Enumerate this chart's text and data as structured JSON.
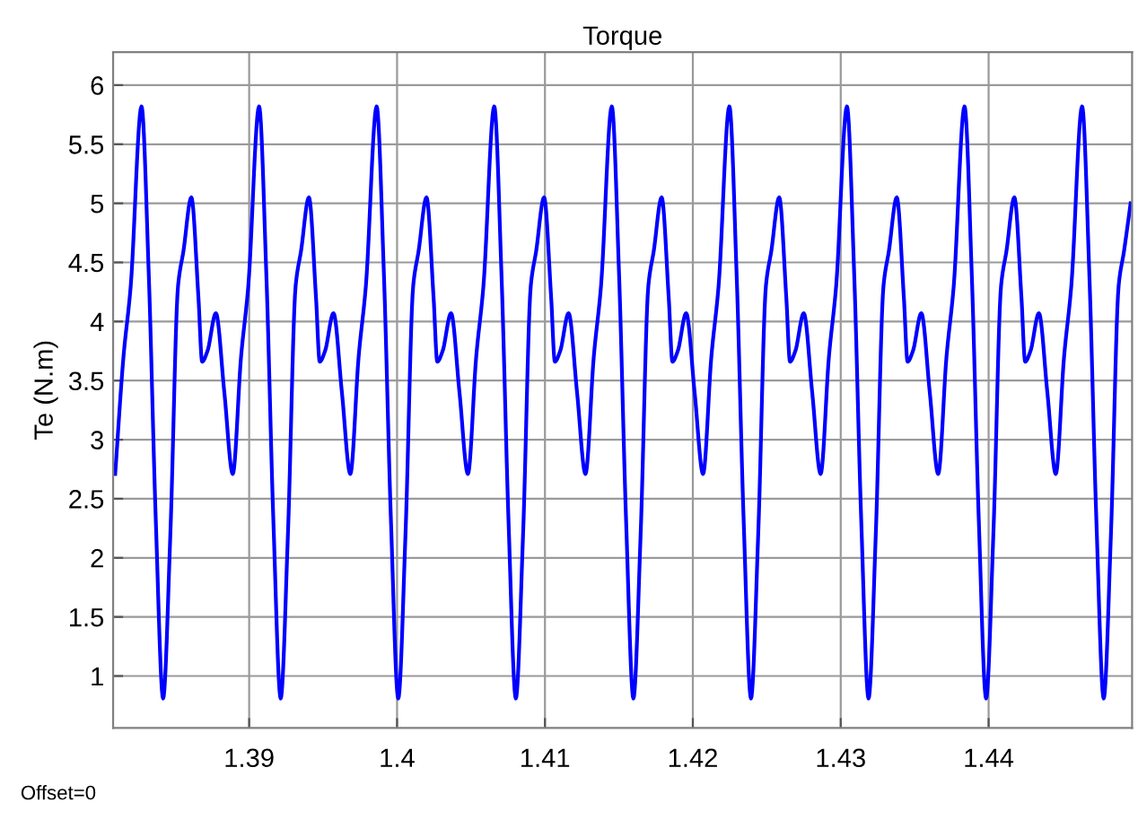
{
  "chart_data": {
    "type": "line",
    "title": "Torque",
    "ylabel": "Te (N.m)",
    "annotations": [
      "Offset=0"
    ],
    "xlim": [
      1.3808,
      1.4497
    ],
    "xticks": [
      1.39,
      1.4,
      1.41,
      1.42,
      1.43,
      1.44
    ],
    "ylim": [
      0.56,
      6.28
    ],
    "yticks": [
      1,
      1.5,
      2,
      2.5,
      3,
      3.5,
      4,
      4.5,
      5,
      5.5,
      6
    ],
    "grid": true,
    "marker": "none",
    "line_style": "solid",
    "series": [
      {
        "color": "#0000ff",
        "x": [
          1.38094,
          1.3815,
          1.38199,
          1.38272,
          1.38321,
          1.38369,
          1.38418,
          1.38467,
          1.38519,
          1.38556,
          1.38609,
          1.38657,
          1.38682,
          1.38718,
          1.38775,
          1.38832,
          1.38889,
          1.38945,
          1.38994,
          1.39067,
          1.39116,
          1.39164,
          1.39213,
          1.39262,
          1.39314,
          1.39351,
          1.39404,
          1.39452,
          1.39477,
          1.39513,
          1.3957,
          1.39627,
          1.39684,
          1.3974,
          1.39789,
          1.39862,
          1.39911,
          1.39959,
          1.40008,
          1.40057,
          1.40109,
          1.40146,
          1.40199,
          1.40247,
          1.40272,
          1.40308,
          1.40365,
          1.40422,
          1.40479,
          1.40535,
          1.40584,
          1.40657,
          1.40706,
          1.40754,
          1.40803,
          1.40852,
          1.40904,
          1.40941,
          1.40994,
          1.41042,
          1.41067,
          1.41103,
          1.4116,
          1.41217,
          1.41274,
          1.4133,
          1.41379,
          1.41452,
          1.41501,
          1.41549,
          1.41598,
          1.41647,
          1.41699,
          1.41736,
          1.41789,
          1.41837,
          1.41862,
          1.41898,
          1.41955,
          1.42012,
          1.42069,
          1.42125,
          1.42174,
          1.42247,
          1.42296,
          1.42344,
          1.42393,
          1.42442,
          1.42494,
          1.42531,
          1.42584,
          1.42632,
          1.42657,
          1.42693,
          1.4275,
          1.42807,
          1.42864,
          1.4292,
          1.42969,
          1.43042,
          1.43091,
          1.43139,
          1.43188,
          1.43237,
          1.43289,
          1.43326,
          1.43379,
          1.43427,
          1.43452,
          1.43488,
          1.43545,
          1.43602,
          1.43659,
          1.43715,
          1.43764,
          1.43837,
          1.43886,
          1.43934,
          1.43983,
          1.44032,
          1.44084,
          1.44121,
          1.44174,
          1.44222,
          1.44247,
          1.44283,
          1.4434,
          1.44397,
          1.44454,
          1.4451,
          1.44559,
          1.44632,
          1.44681,
          1.44729,
          1.44778,
          1.44827,
          1.44879,
          1.44916,
          1.4496
        ],
        "values": [
          2.71,
          3.7,
          4.3,
          5.82,
          4.4,
          2.3,
          0.81,
          2.2,
          4.3,
          4.6,
          5.05,
          4.2,
          3.66,
          3.75,
          4.07,
          3.4,
          2.71,
          3.7,
          4.3,
          5.82,
          4.4,
          2.3,
          0.81,
          2.2,
          4.3,
          4.6,
          5.05,
          4.2,
          3.66,
          3.75,
          4.07,
          3.4,
          2.71,
          3.7,
          4.3,
          5.82,
          4.4,
          2.3,
          0.81,
          2.2,
          4.3,
          4.6,
          5.05,
          4.2,
          3.66,
          3.75,
          4.07,
          3.4,
          2.71,
          3.7,
          4.3,
          5.82,
          4.4,
          2.3,
          0.81,
          2.2,
          4.3,
          4.6,
          5.05,
          4.2,
          3.66,
          3.75,
          4.07,
          3.4,
          2.71,
          3.7,
          4.3,
          5.82,
          4.4,
          2.3,
          0.81,
          2.2,
          4.3,
          4.6,
          5.05,
          4.2,
          3.66,
          3.75,
          4.07,
          3.4,
          2.71,
          3.7,
          4.3,
          5.82,
          4.4,
          2.3,
          0.81,
          2.2,
          4.3,
          4.6,
          5.05,
          4.2,
          3.66,
          3.75,
          4.07,
          3.4,
          2.71,
          3.7,
          4.3,
          5.82,
          4.4,
          2.3,
          0.81,
          2.2,
          4.3,
          4.6,
          5.05,
          4.2,
          3.66,
          3.75,
          4.07,
          3.4,
          2.71,
          3.7,
          4.3,
          5.82,
          4.4,
          2.3,
          0.81,
          2.2,
          4.3,
          4.6,
          5.05,
          4.2,
          3.66,
          3.75,
          4.07,
          3.4,
          2.71,
          3.7,
          4.3,
          5.82,
          4.4,
          2.3,
          0.81,
          2.2,
          4.3,
          4.6,
          5.0
        ]
      }
    ]
  }
}
